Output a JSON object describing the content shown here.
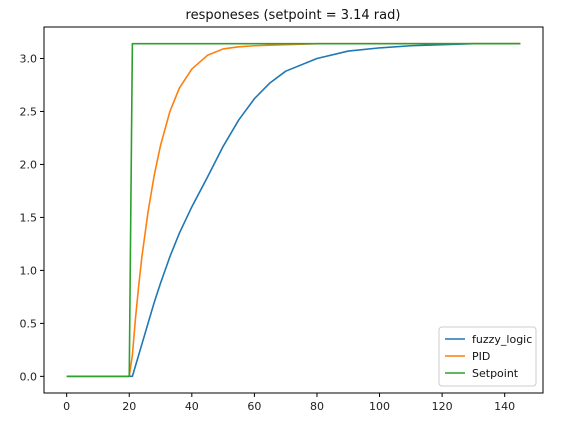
{
  "chart_data": {
    "type": "line",
    "title": "responeses (setpoint = 3.14 rad)",
    "xlabel": "",
    "ylabel": "",
    "xlim": [
      -7.25,
      152.25
    ],
    "ylim": [
      -0.157,
      3.297
    ],
    "xticks": [
      0,
      20,
      40,
      60,
      80,
      100,
      120,
      140
    ],
    "yticks": [
      0.0,
      0.5,
      1.0,
      1.5,
      2.0,
      2.5,
      3.0
    ],
    "xtick_labels": [
      "0",
      "20",
      "40",
      "60",
      "80",
      "100",
      "120",
      "140"
    ],
    "ytick_labels": [
      "0.0",
      "0.5",
      "1.0",
      "1.5",
      "2.0",
      "2.5",
      "3.0"
    ],
    "grid": false,
    "legend_position": "lower-right",
    "series": [
      {
        "name": "fuzzy_logic",
        "color": "#1f77b4",
        "x": [
          0,
          20,
          21,
          22,
          24,
          26,
          28,
          30,
          33,
          36,
          40,
          45,
          50,
          55,
          60,
          65,
          70,
          80,
          90,
          100,
          110,
          120,
          130,
          145
        ],
        "y": [
          0.0,
          0.0,
          0.0,
          0.1,
          0.3,
          0.5,
          0.7,
          0.88,
          1.13,
          1.35,
          1.6,
          1.88,
          2.17,
          2.42,
          2.62,
          2.77,
          2.88,
          3.0,
          3.07,
          3.1,
          3.12,
          3.13,
          3.14,
          3.14
        ]
      },
      {
        "name": "PID",
        "color": "#ff7f0e",
        "x": [
          0,
          20,
          21,
          22,
          23,
          24,
          26,
          28,
          30,
          33,
          36,
          40,
          45,
          50,
          55,
          60,
          70,
          80,
          100,
          145
        ],
        "y": [
          0.0,
          0.0,
          0.2,
          0.55,
          0.85,
          1.12,
          1.55,
          1.9,
          2.18,
          2.5,
          2.72,
          2.9,
          3.03,
          3.09,
          3.11,
          3.12,
          3.13,
          3.14,
          3.14,
          3.14
        ]
      },
      {
        "name": "Setpoint",
        "color": "#2ca02c",
        "x": [
          0,
          20,
          21,
          145
        ],
        "y": [
          0.0,
          0.0,
          3.14,
          3.14
        ]
      }
    ]
  }
}
